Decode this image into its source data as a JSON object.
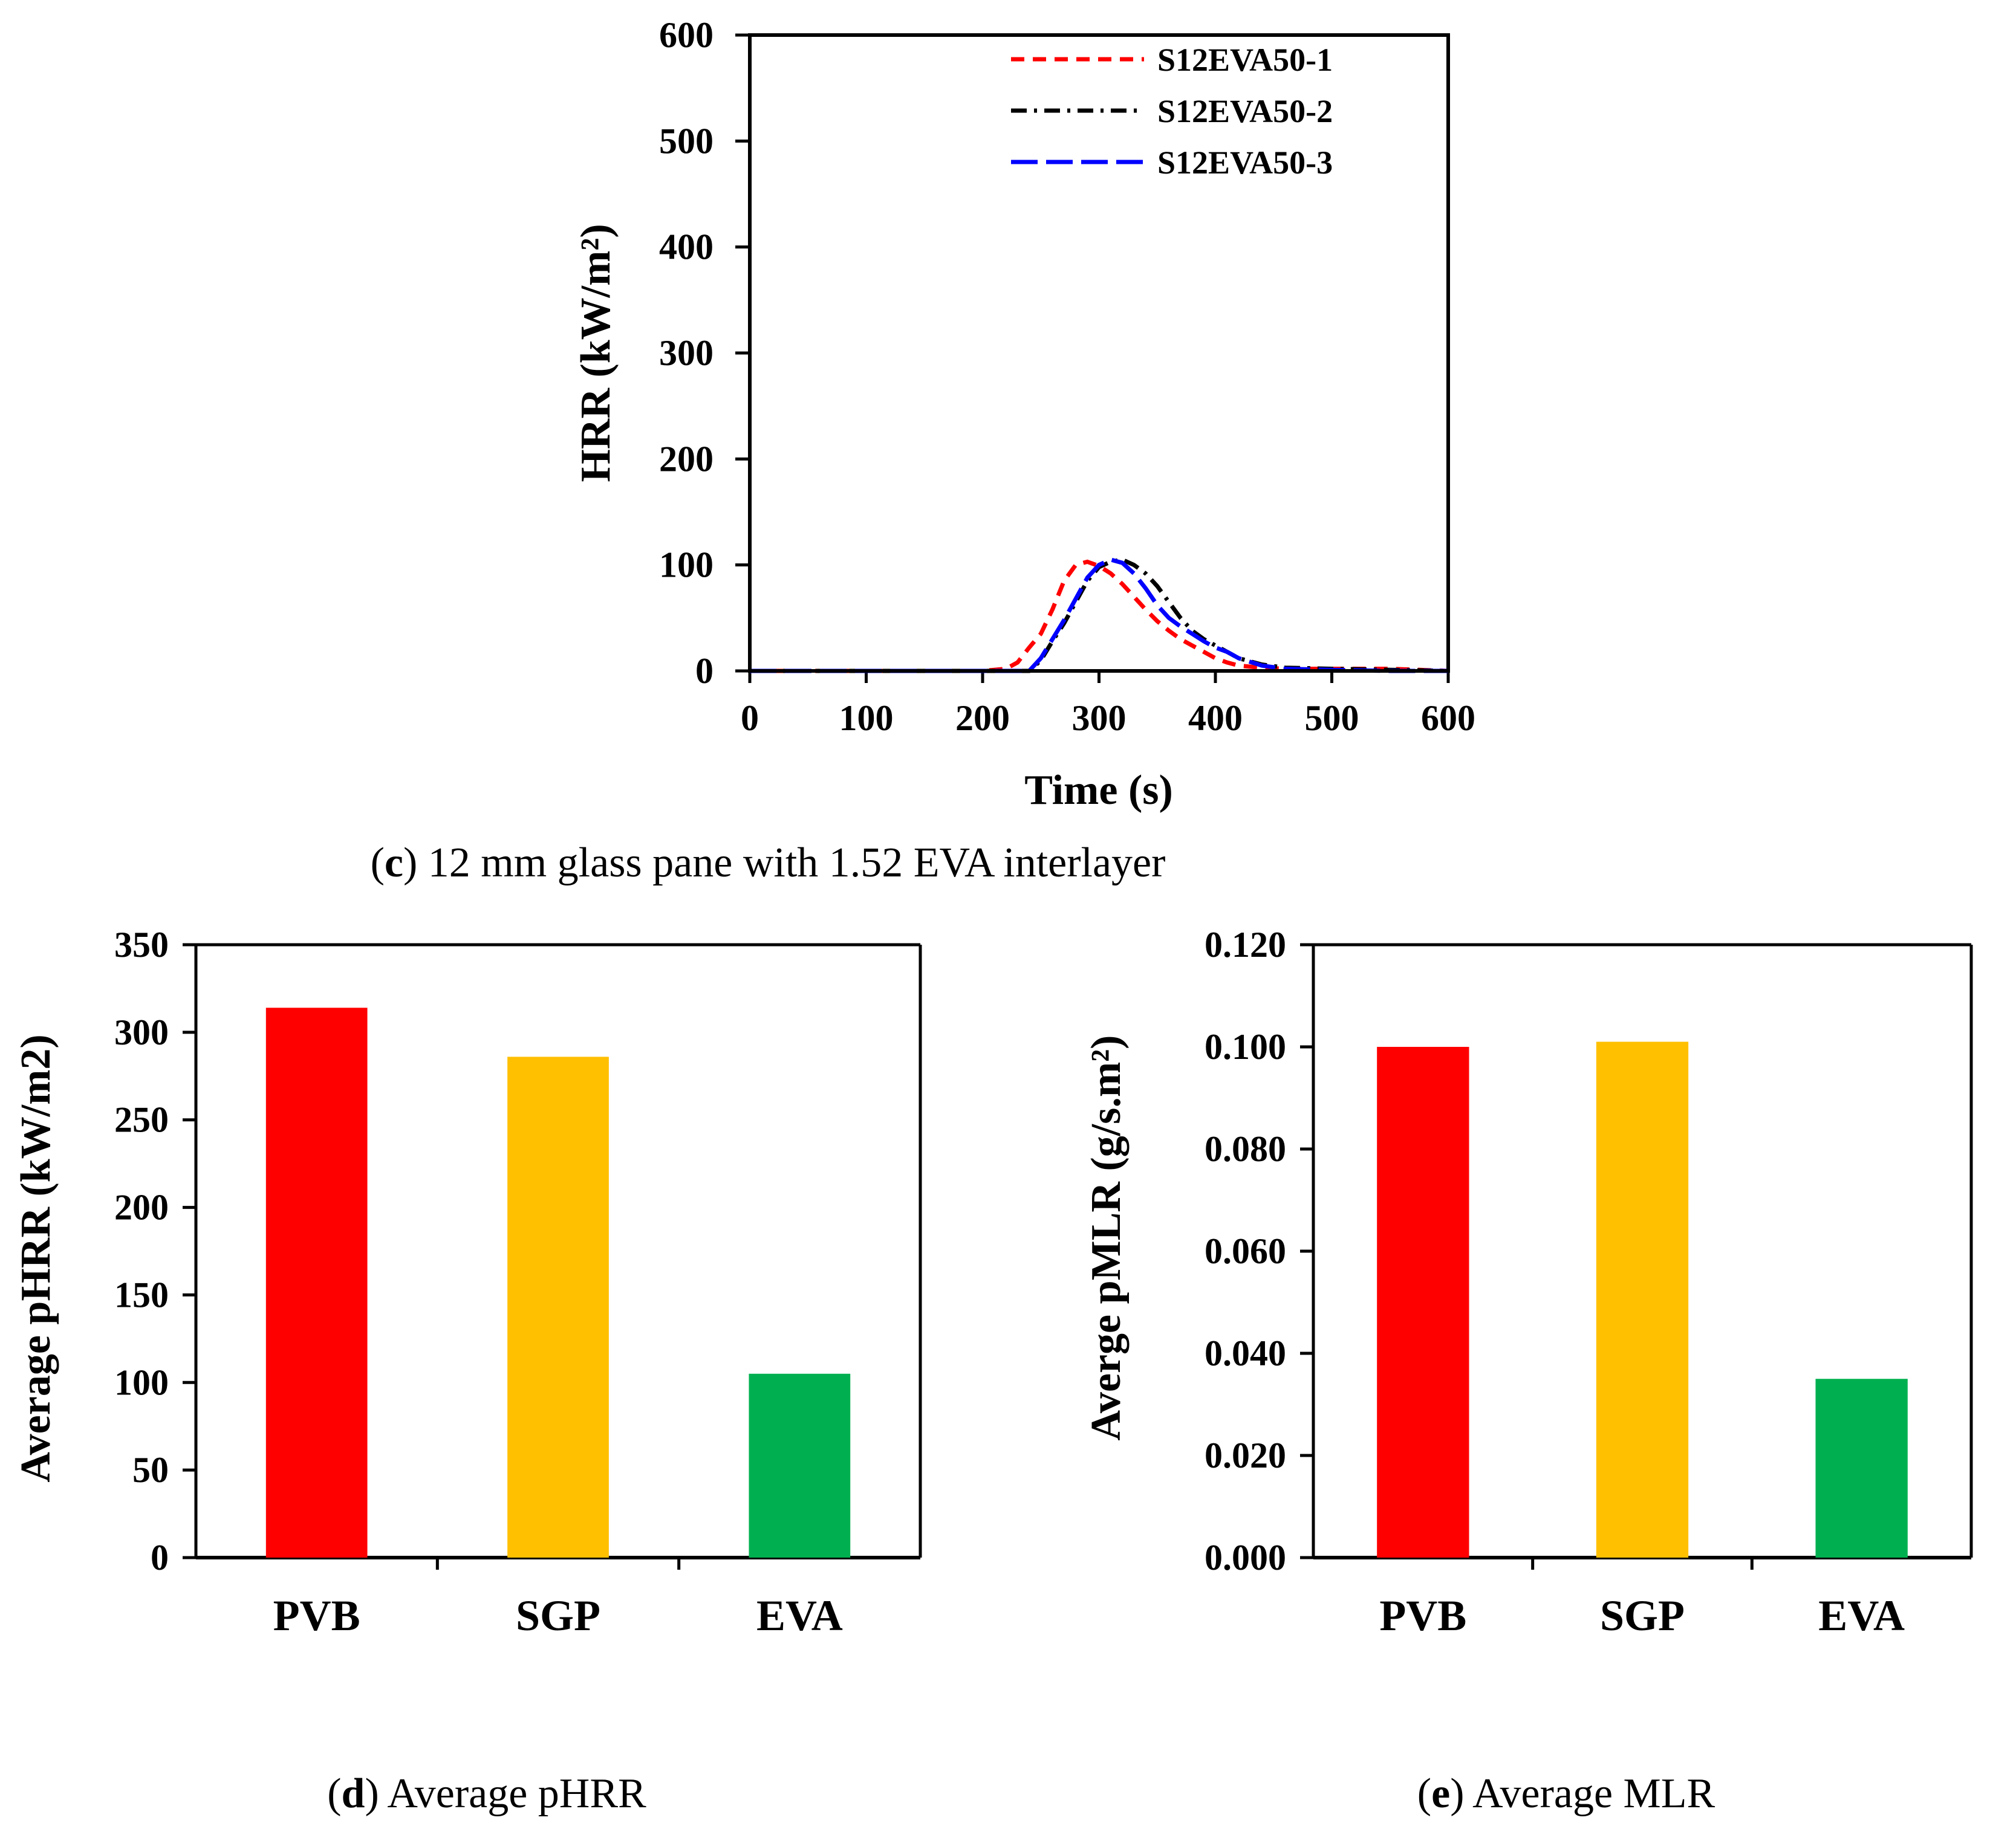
{
  "chart_data": [
    {
      "id": "c",
      "type": "line",
      "title": "",
      "caption_letter": "c",
      "caption_text": " 12 mm glass pane with 1.52 EVA interlayer",
      "xlabel": "Time (s)",
      "ylabel": "HRR (kW/m²)",
      "xlim": [
        0,
        600
      ],
      "ylim": [
        0,
        600
      ],
      "xticks": [
        0,
        100,
        200,
        300,
        400,
        500,
        600
      ],
      "yticks": [
        0,
        100,
        200,
        300,
        400,
        500,
        600
      ],
      "legend_position": "top-right",
      "series": [
        {
          "name": "S12EVA50-1",
          "color": "#ff0000",
          "dash": "short-dash",
          "x": [
            0,
            50,
            100,
            150,
            200,
            220,
            230,
            240,
            250,
            260,
            270,
            280,
            290,
            300,
            310,
            320,
            330,
            340,
            350,
            360,
            370,
            380,
            390,
            400,
            410,
            420,
            440,
            460,
            500,
            550,
            600
          ],
          "y": [
            0,
            0,
            0,
            0,
            0,
            2,
            8,
            22,
            35,
            58,
            85,
            100,
            103,
            99,
            92,
            82,
            70,
            58,
            47,
            38,
            30,
            24,
            18,
            12,
            8,
            5,
            3,
            2,
            2,
            2,
            0
          ]
        },
        {
          "name": "S12EVA50-2",
          "color": "#000000",
          "dash": "dash-dot",
          "x": [
            0,
            100,
            200,
            240,
            250,
            260,
            270,
            280,
            290,
            300,
            310,
            320,
            330,
            340,
            350,
            360,
            370,
            380,
            390,
            400,
            410,
            420,
            440,
            460,
            500,
            550,
            600
          ],
          "y": [
            0,
            0,
            0,
            0,
            10,
            28,
            45,
            65,
            85,
            98,
            103,
            105,
            100,
            92,
            80,
            65,
            50,
            38,
            30,
            24,
            18,
            12,
            6,
            3,
            2,
            1,
            0
          ]
        },
        {
          "name": "S12EVA50-3",
          "color": "#0000ff",
          "dash": "long-dash",
          "x": [
            0,
            100,
            200,
            240,
            250,
            260,
            270,
            280,
            290,
            300,
            310,
            320,
            330,
            340,
            350,
            360,
            370,
            380,
            390,
            400,
            410,
            420,
            440,
            460,
            500,
            550,
            600
          ],
          "y": [
            0,
            0,
            0,
            0,
            12,
            30,
            48,
            68,
            88,
            100,
            105,
            102,
            92,
            78,
            62,
            50,
            42,
            35,
            28,
            22,
            18,
            12,
            5,
            2,
            1,
            0,
            0
          ]
        }
      ]
    },
    {
      "id": "d",
      "type": "bar",
      "caption_letter": "d",
      "caption_text": " Average pHRR",
      "xlabel": "",
      "ylabel": "Average pHRR (kW/m2)",
      "categories": [
        "PVB",
        "SGP",
        "EVA"
      ],
      "values": [
        314,
        286,
        105
      ],
      "colors": [
        "#ff0000",
        "#ffc000",
        "#00b050"
      ],
      "ylim": [
        0,
        350
      ],
      "yticks": [
        "0",
        "50",
        "100",
        "150",
        "200",
        "250",
        "300",
        "350"
      ]
    },
    {
      "id": "e",
      "type": "bar",
      "caption_letter": "e",
      "caption_text": " Average MLR",
      "xlabel": "",
      "ylabel": "Averge pMLR (g/s.m²)",
      "categories": [
        "PVB",
        "SGP",
        "EVA"
      ],
      "values": [
        0.1,
        0.101,
        0.035
      ],
      "colors": [
        "#ff0000",
        "#ffc000",
        "#00b050"
      ],
      "ylim": [
        0,
        0.12
      ],
      "yticks": [
        "0.000",
        "0.020",
        "0.040",
        "0.060",
        "0.080",
        "0.100",
        "0.120"
      ]
    }
  ]
}
